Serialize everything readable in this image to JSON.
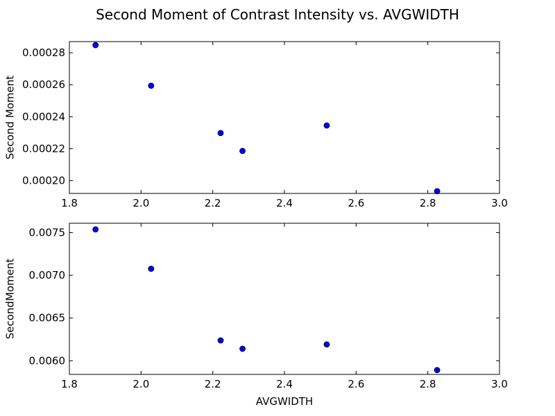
{
  "chart_data": {
    "title": "Second Moment of Contrast Intensity vs. AVGWIDTH",
    "type": "scatter",
    "marker_color": "#0000ff",
    "subplots": [
      {
        "ylabel": "Second Moment",
        "xlabel": "",
        "xlim": [
          1.8,
          3.0
        ],
        "ylim": [
          0.000192,
          0.000287
        ],
        "xticks": [
          "1.8",
          "2.0",
          "2.2",
          "2.4",
          "2.6",
          "2.8",
          "3.0"
        ],
        "yticks": [
          "0.00020",
          "0.00022",
          "0.00024",
          "0.00026",
          "0.00028"
        ],
        "x": [
          1.873,
          2.028,
          2.222,
          2.283,
          2.518,
          2.826
        ],
        "y": [
          0.0002848,
          0.0002594,
          0.0002298,
          0.0002186,
          0.0002345,
          0.0001934
        ]
      },
      {
        "ylabel": "SecondMoment",
        "xlabel": "AVGWIDTH",
        "xlim": [
          1.8,
          3.0
        ],
        "ylim": [
          0.00584,
          0.00761
        ],
        "xticks": [
          "1.8",
          "2.0",
          "2.2",
          "2.4",
          "2.6",
          "2.8",
          "3.0"
        ],
        "yticks": [
          "0.0060",
          "0.0065",
          "0.0070",
          "0.0075"
        ],
        "x": [
          1.873,
          2.028,
          2.222,
          2.283,
          2.518,
          2.826
        ],
        "y": [
          0.007538,
          0.007077,
          0.006238,
          0.00614,
          0.006191,
          0.005891
        ]
      }
    ]
  }
}
